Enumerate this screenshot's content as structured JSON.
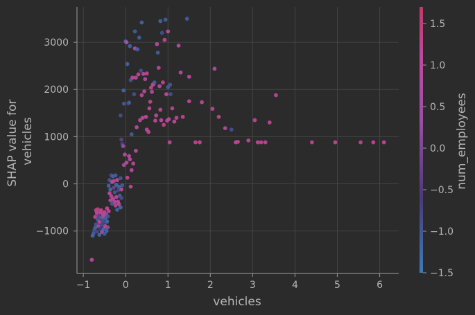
{
  "chart_data": {
    "type": "scatter",
    "title": "",
    "xlabel": "vehicles",
    "ylabel_lines": [
      "SHAP value for",
      "vehicles"
    ],
    "xlim": [
      -1.15,
      6.45
    ],
    "ylim": [
      -1900,
      3750
    ],
    "xticks": [
      -1,
      0,
      1,
      2,
      3,
      4,
      5,
      6
    ],
    "yticks": [
      -1000,
      0,
      1000,
      2000,
      3000
    ],
    "xtick_labels": [
      "−1",
      "0",
      "1",
      "2",
      "3",
      "4",
      "5",
      "6"
    ],
    "ytick_labels": [
      "−1000",
      "0",
      "1000",
      "2000",
      "3000"
    ],
    "grid": true,
    "color_feature": "num_employees",
    "colorbar": {
      "label": "num_employees",
      "range": [
        -1.5,
        1.7
      ],
      "ticks": [
        -1.5,
        -1.0,
        -0.5,
        0.0,
        0.5,
        1.0,
        1.5
      ],
      "tick_labels": [
        "−1.5",
        "−1.0",
        "−0.5",
        "0.0",
        "0.5",
        "1.0",
        "1.5"
      ],
      "colors": [
        "#3d7bb8",
        "#4b3a7a",
        "#9c4fa6",
        "#c04aa0",
        "#c03a6a"
      ]
    },
    "points": [
      [
        -0.8,
        -1610,
        0.9
      ],
      [
        -0.78,
        -1100,
        -1.3
      ],
      [
        -0.76,
        -1050,
        -1.1
      ],
      [
        -0.74,
        -980,
        -0.9
      ],
      [
        -0.72,
        -930,
        -1.2
      ],
      [
        -0.72,
        -700,
        1.2
      ],
      [
        -0.7,
        -560,
        1.3
      ],
      [
        -0.7,
        -860,
        -1.0
      ],
      [
        -0.68,
        -620,
        1.1
      ],
      [
        -0.68,
        -1010,
        -0.8
      ],
      [
        -0.66,
        -760,
        -1.1
      ],
      [
        -0.66,
        -540,
        1.4
      ],
      [
        -0.64,
        -900,
        0.6
      ],
      [
        -0.64,
        -680,
        -0.2
      ],
      [
        -0.62,
        -810,
        1.0
      ],
      [
        -0.62,
        -1080,
        -1.3
      ],
      [
        -0.6,
        -600,
        0.9
      ],
      [
        -0.6,
        -950,
        -0.6
      ],
      [
        -0.58,
        -720,
        -1.2
      ],
      [
        -0.58,
        -560,
        1.3
      ],
      [
        -0.56,
        -870,
        -0.9
      ],
      [
        -0.56,
        -1020,
        0.7
      ],
      [
        -0.54,
        -650,
        1.1
      ],
      [
        -0.54,
        -790,
        -1.0
      ],
      [
        -0.52,
        -960,
        -1.4
      ],
      [
        -0.52,
        -700,
        0.8
      ],
      [
        -0.5,
        -840,
        -0.7
      ],
      [
        -0.5,
        -1060,
        -1.1
      ],
      [
        -0.5,
        -600,
        1.2
      ],
      [
        -0.48,
        -730,
        -1.2
      ],
      [
        -0.48,
        -900,
        1.0
      ],
      [
        -0.46,
        -980,
        -0.9
      ],
      [
        -0.46,
        -650,
        0.4
      ],
      [
        -0.45,
        -1000,
        -1.2
      ],
      [
        -0.44,
        -800,
        -1.3
      ],
      [
        -0.44,
        -520,
        1.1
      ],
      [
        -0.42,
        -920,
        0.2
      ],
      [
        -0.42,
        -690,
        -1.0
      ],
      [
        -0.4,
        -580,
        1.3
      ],
      [
        -0.4,
        -40,
        -1.2
      ],
      [
        -0.38,
        -200,
        1.0
      ],
      [
        -0.38,
        80,
        -1.0
      ],
      [
        -0.36,
        -350,
        0.8
      ],
      [
        -0.36,
        -120,
        -1.3
      ],
      [
        -0.34,
        180,
        -0.9
      ],
      [
        -0.34,
        -260,
        1.2
      ],
      [
        -0.32,
        40,
        0.9
      ],
      [
        -0.32,
        -420,
        -1.1
      ],
      [
        -0.3,
        160,
        -1.2
      ],
      [
        -0.3,
        -320,
        1.1
      ],
      [
        -0.28,
        -80,
        -0.2
      ],
      [
        -0.28,
        60,
        1.2
      ],
      [
        -0.26,
        -380,
        0.7
      ],
      [
        -0.26,
        -180,
        -1.0
      ],
      [
        -0.24,
        180,
        -1.1
      ],
      [
        -0.24,
        -460,
        1.3
      ],
      [
        -0.22,
        -20,
        -1.3
      ],
      [
        -0.22,
        -280,
        0.9
      ],
      [
        -0.2,
        80,
        1.0
      ],
      [
        -0.2,
        -550,
        -1.2
      ],
      [
        -0.18,
        -140,
        -0.8
      ],
      [
        -0.18,
        -380,
        1.1
      ],
      [
        -0.16,
        -60,
        -1.2
      ],
      [
        -0.16,
        -430,
        0.8
      ],
      [
        -0.14,
        -250,
        -1.1
      ],
      [
        -0.12,
        -500,
        -1.3
      ],
      [
        -0.12,
        120,
        -1.0
      ],
      [
        -0.1,
        -120,
        1.2
      ],
      [
        -0.1,
        -300,
        -0.9
      ],
      [
        -0.08,
        -30,
        -1.1
      ],
      [
        -0.12,
        1450,
        -0.9
      ],
      [
        -0.1,
        940,
        -0.3
      ],
      [
        -0.08,
        850,
        -0.5
      ],
      [
        -0.06,
        800,
        0.3
      ],
      [
        -0.05,
        1980,
        -1.2
      ],
      [
        -0.04,
        1700,
        -1.0
      ],
      [
        -0.04,
        400,
        0.6
      ],
      [
        -0.02,
        620,
        0.9
      ],
      [
        0,
        3020,
        -1.3
      ],
      [
        0.02,
        3000,
        0.8
      ],
      [
        0.02,
        450,
        1.1
      ],
      [
        0.04,
        2540,
        -1.2
      ],
      [
        0.04,
        130,
        1.2
      ],
      [
        0.06,
        1700,
        -0.6
      ],
      [
        0.08,
        1720,
        -1.1
      ],
      [
        0.08,
        590,
        0.8
      ],
      [
        0.1,
        2920,
        -1.2
      ],
      [
        0.1,
        520,
        1.1
      ],
      [
        0.12,
        2200,
        -1.0
      ],
      [
        0.12,
        -60,
        1.2
      ],
      [
        0.14,
        290,
        1.0
      ],
      [
        0.14,
        1050,
        -1.1
      ],
      [
        0.16,
        2250,
        0.9
      ],
      [
        0.18,
        430,
        1.2
      ],
      [
        0.2,
        1900,
        -0.9
      ],
      [
        0.22,
        3230,
        -1.1
      ],
      [
        0.22,
        2870,
        0.8
      ],
      [
        0.24,
        2250,
        1.2
      ],
      [
        0.24,
        700,
        1.1
      ],
      [
        0.26,
        1200,
        0.9
      ],
      [
        0.28,
        2850,
        -1.2
      ],
      [
        0.3,
        2320,
        1.2
      ],
      [
        0.32,
        3100,
        -1.1
      ],
      [
        0.34,
        1350,
        1.2
      ],
      [
        0.36,
        2400,
        -0.9
      ],
      [
        0.38,
        3420,
        -1.2
      ],
      [
        0.38,
        1880,
        1.2
      ],
      [
        0.4,
        1400,
        0.9
      ],
      [
        0.42,
        2330,
        1.0
      ],
      [
        0.44,
        1960,
        1.2
      ],
      [
        0.46,
        2220,
        0.8
      ],
      [
        0.48,
        1420,
        1.1
      ],
      [
        0.5,
        2340,
        1.2
      ],
      [
        0.5,
        1150,
        1.0
      ],
      [
        0.54,
        1100,
        1.2
      ],
      [
        0.56,
        1600,
        1.0
      ],
      [
        0.58,
        1740,
        1.2
      ],
      [
        0.6,
        2040,
        1.2
      ],
      [
        0.62,
        1950,
        0.9
      ],
      [
        0.64,
        2100,
        1.2
      ],
      [
        0.66,
        2120,
        1.1
      ],
      [
        0.68,
        2150,
        -1.1
      ],
      [
        0.7,
        1340,
        1.2
      ],
      [
        0.72,
        1450,
        1.0
      ],
      [
        0.74,
        2960,
        0.9
      ],
      [
        0.76,
        2780,
        -1.1
      ],
      [
        0.78,
        2460,
        1.2
      ],
      [
        0.8,
        2070,
        1.0
      ],
      [
        0.82,
        3450,
        -1.2
      ],
      [
        0.82,
        1570,
        1.2
      ],
      [
        0.84,
        1350,
        1.0
      ],
      [
        0.86,
        3200,
        -0.9
      ],
      [
        0.88,
        2150,
        1.2
      ],
      [
        0.9,
        1250,
        1.3
      ],
      [
        0.92,
        3050,
        1.2
      ],
      [
        0.94,
        3480,
        -1.1
      ],
      [
        0.96,
        1900,
        1.1
      ],
      [
        0.98,
        1340,
        1.2
      ],
      [
        1,
        2050,
        -1.1
      ],
      [
        1,
        3230,
        1.0
      ],
      [
        1.02,
        1370,
        0.8
      ],
      [
        1.04,
        880,
        1.2
      ],
      [
        1.05,
        2100,
        -1.0
      ],
      [
        1.06,
        1900,
        -0.9
      ],
      [
        1.1,
        1600,
        1.2
      ],
      [
        1.15,
        1320,
        1.1
      ],
      [
        1.2,
        1400,
        1.2
      ],
      [
        1.25,
        2930,
        1.0
      ],
      [
        1.3,
        2360,
        0.9
      ],
      [
        1.35,
        1420,
        1.2
      ],
      [
        1.45,
        3500,
        -1.1
      ],
      [
        1.5,
        2270,
        1.0
      ],
      [
        1.5,
        1750,
        1.2
      ],
      [
        1.65,
        880,
        1.3
      ],
      [
        1.75,
        880,
        1.2
      ],
      [
        1.8,
        1730,
        1.2
      ],
      [
        2.05,
        1590,
        1.2
      ],
      [
        2.1,
        2440,
        0.8
      ],
      [
        2.2,
        1420,
        1.2
      ],
      [
        2.35,
        1180,
        0.9
      ],
      [
        2.5,
        1150,
        -0.9
      ],
      [
        2.6,
        880,
        1.2
      ],
      [
        2.65,
        890,
        1.2
      ],
      [
        2.9,
        920,
        1.2
      ],
      [
        3.05,
        1350,
        1.2
      ],
      [
        3.12,
        880,
        1.2
      ],
      [
        3.2,
        880,
        1.3
      ],
      [
        3.3,
        880,
        1.2
      ],
      [
        3.4,
        1300,
        1.2
      ],
      [
        3.55,
        1880,
        1.2
      ],
      [
        4.4,
        880,
        1.3
      ],
      [
        4.95,
        880,
        1.2
      ],
      [
        5.55,
        880,
        1.3
      ],
      [
        5.85,
        880,
        1.2
      ],
      [
        6.1,
        880,
        1.2
      ]
    ]
  }
}
